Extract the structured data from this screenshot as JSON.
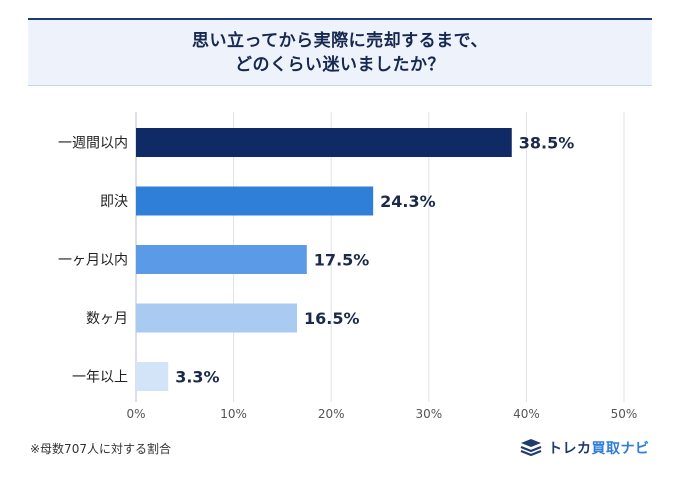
{
  "title": {
    "line1": "思い立ってから実際に売却するまで、",
    "line2": "どのくらい迷いましたか？"
  },
  "chart_data": {
    "type": "bar",
    "orientation": "horizontal",
    "categories": [
      "一週間以内",
      "即決",
      "一ヶ月以内",
      "数ヶ月",
      "一年以上"
    ],
    "values": [
      38.5,
      24.3,
      17.5,
      16.5,
      3.3
    ],
    "value_labels": [
      "38.5%",
      "24.3%",
      "17.5%",
      "16.5%",
      "3.3%"
    ],
    "bar_colors": [
      "#102a66",
      "#2f7ed8",
      "#5b9ae6",
      "#a9cbf2",
      "#d4e4f8"
    ],
    "xlim": [
      0,
      50
    ],
    "x_ticks": [
      "0%",
      "10%",
      "20%",
      "30%",
      "40%",
      "50%"
    ],
    "grid": true
  },
  "footnote": "※母数707人に対する割合",
  "brand": {
    "name_part1": "トレカ",
    "name_part2": "買取ナビ"
  }
}
